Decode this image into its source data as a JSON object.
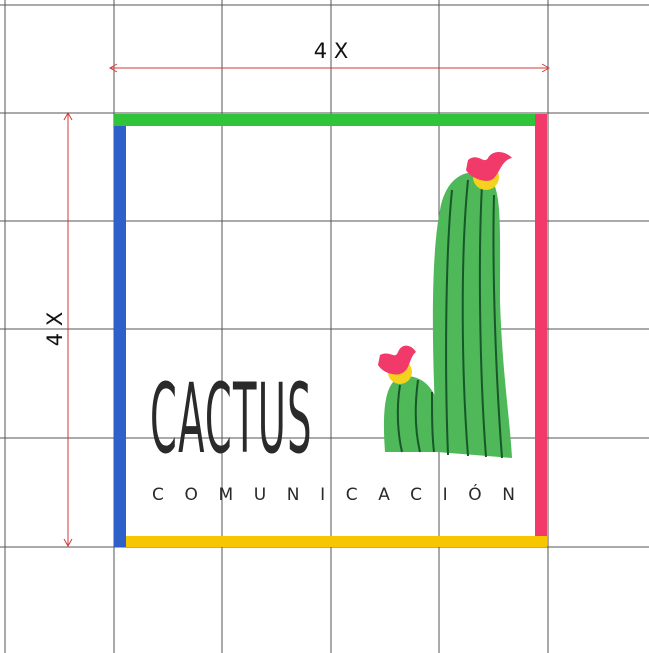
{
  "dimensions": {
    "top": "4 X",
    "left": "4 X"
  },
  "logo": {
    "name": "CACTUS",
    "tagline": "COMUNICACIÓN"
  }
}
